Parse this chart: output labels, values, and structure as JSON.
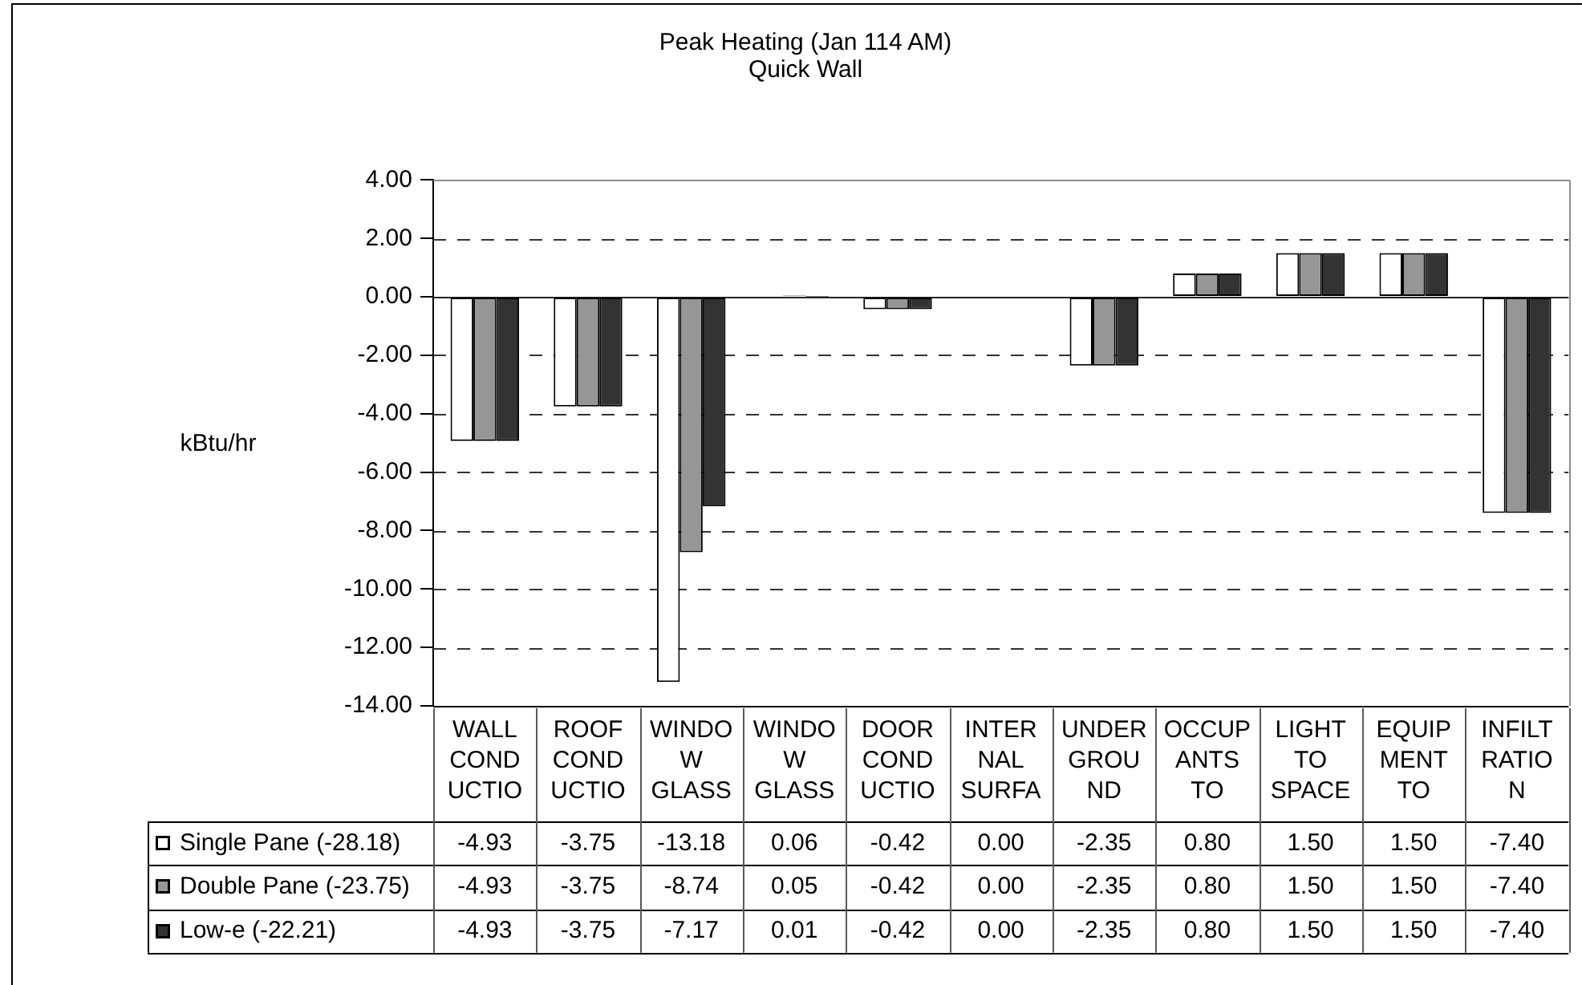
{
  "chart_data": {
    "type": "bar",
    "title": "Peak Heating (Jan 114 AM)",
    "subtitle": "Quick Wall",
    "ylabel": "kBtu/hr",
    "categories": [
      "WALL COND UCTIO",
      "ROOF COND UCTIO",
      "WINDO W GLASS",
      "WINDO W GLASS",
      "DOOR COND UCTIO",
      "INTER NAL SURFA",
      "UNDER GROU ND",
      "OCCUP ANTS TO",
      "LIGHT TO SPACE",
      "EQUIP MENT TO",
      "INFILT RATIO N"
    ],
    "series": [
      {
        "name": "Single Pane (-28.18)",
        "color": "#ffffff",
        "values": [
          -4.93,
          -3.75,
          -13.18,
          0.06,
          -0.42,
          0.0,
          -2.35,
          0.8,
          1.5,
          1.5,
          -7.4
        ],
        "value_labels": [
          "-4.93",
          "-3.75",
          "-13.18",
          "0.06",
          "-0.42",
          "0.00",
          "-2.35",
          "0.80",
          "1.50",
          "1.50",
          "-7.40"
        ]
      },
      {
        "name": "Double Pane (-23.75)",
        "color": "#969696",
        "values": [
          -4.93,
          -3.75,
          -8.74,
          0.05,
          -0.42,
          0.0,
          -2.35,
          0.8,
          1.5,
          1.5,
          -7.4
        ],
        "value_labels": [
          "-4.93",
          "-3.75",
          "-8.74",
          "0.05",
          "-0.42",
          "0.00",
          "-2.35",
          "0.80",
          "1.50",
          "1.50",
          "-7.40"
        ]
      },
      {
        "name": "Low-e (-22.21)",
        "color": "#333333",
        "values": [
          -4.93,
          -3.75,
          -7.17,
          0.01,
          -0.42,
          0.0,
          -2.35,
          0.8,
          1.5,
          1.5,
          -7.4
        ],
        "value_labels": [
          "-4.93",
          "-3.75",
          "-7.17",
          "0.01",
          "-0.42",
          "0.00",
          "-2.35",
          "0.80",
          "1.50",
          "1.50",
          "-7.40"
        ]
      }
    ],
    "ylim": [
      -14,
      4
    ],
    "yticks": [
      {
        "value": -14,
        "label": "-14.00"
      },
      {
        "value": -12,
        "label": "-12.00"
      },
      {
        "value": -10,
        "label": "-10.00"
      },
      {
        "value": -8,
        "label": "-8.00"
      },
      {
        "value": -6,
        "label": "-6.00"
      },
      {
        "value": -4,
        "label": "-4.00"
      },
      {
        "value": -2,
        "label": "-2.00"
      },
      {
        "value": 0,
        "label": "0.00"
      },
      {
        "value": 2,
        "label": "2.00"
      },
      {
        "value": 4,
        "label": "4.00"
      }
    ],
    "grid": "y",
    "legend": "bottom"
  }
}
